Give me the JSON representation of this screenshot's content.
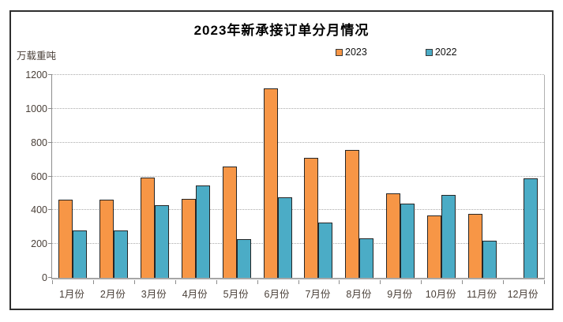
{
  "chart_data": {
    "type": "bar",
    "title": "2023年新承接订单分月情况",
    "unit_label": "万载重吨",
    "categories": [
      "1月份",
      "2月份",
      "3月份",
      "4月份",
      "5月份",
      "6月份",
      "7月份",
      "8月份",
      "9月份",
      "10月份",
      "11月份",
      "12月份"
    ],
    "series": [
      {
        "name": "2023",
        "color": "#F79646",
        "values": [
          460,
          463,
          591,
          466,
          658,
          1120,
          708,
          756,
          501,
          371,
          376,
          null
        ]
      },
      {
        "name": "2022",
        "color": "#4BACC6",
        "values": [
          282,
          282,
          430,
          545,
          228,
          476,
          326,
          232,
          440,
          490,
          218,
          590
        ]
      }
    ],
    "ylim": [
      0,
      1200
    ],
    "ytick_step": 200,
    "yticks": [
      "0",
      "200",
      "400",
      "600",
      "800",
      "1000",
      "1200"
    ],
    "grid": "horizontal-dotted",
    "legend_position": "top-center",
    "bar_border_color": "#262626"
  },
  "colors": {
    "background": "#ffffff",
    "frame_border": "#2e2e2e",
    "axis_line": "#8c8c8c",
    "gridline": "#ababab",
    "axis_text": "#4a4039",
    "title_text": "#000000"
  }
}
